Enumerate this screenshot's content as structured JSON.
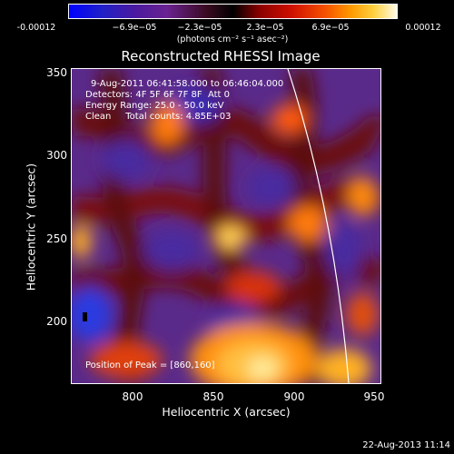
{
  "colorbar": {
    "ticks": [
      "-0.00012",
      "−6.9e−05",
      "−2.3e−05",
      "2.3e−05",
      "6.9e−05",
      "0.00012"
    ],
    "units": "(photons cm⁻² s⁻¹ asec⁻²)"
  },
  "title": "Reconstructed RHESSI Image",
  "info": {
    "time_range": "9-Aug-2011 06:41:58.000 to 06:46:04.000",
    "detectors": "Detectors: 4F 5F 6F 7F 8F  Att 0",
    "energy": "Energy Range: 25.0 - 50.0 keV",
    "clean": "Clean     Total counts: 4.85E+03",
    "peak": "Position of Peak = [860,160]"
  },
  "axes": {
    "xlabel": "Heliocentric X (arcsec)",
    "ylabel": "Heliocentric Y (arcsec)",
    "xticks": [
      "800",
      "850",
      "900",
      "950"
    ],
    "yticks": [
      "350",
      "300",
      "250",
      "200"
    ]
  },
  "timestamp": "22-Aug-2013 11:14",
  "colors": {
    "limb": "#ffffff",
    "background": "#000000"
  }
}
